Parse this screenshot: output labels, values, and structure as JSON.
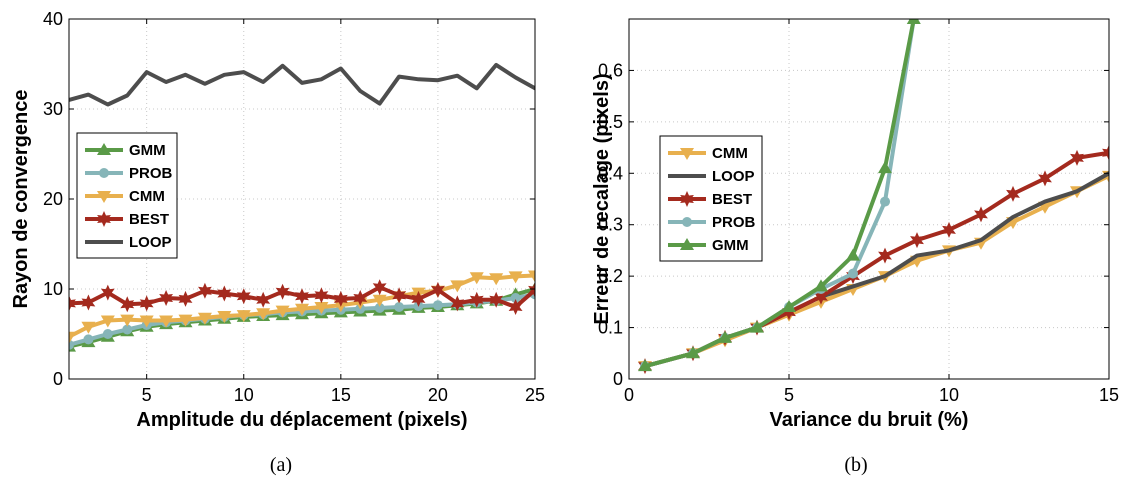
{
  "chart_data": [
    {
      "type": "line",
      "panel_label": "(a)",
      "xlabel": "Amplitude du déplacement (pixels)",
      "ylabel": "Rayon de convergence",
      "xlim": [
        1,
        25
      ],
      "ylim": [
        0,
        40
      ],
      "xticks": [
        5,
        10,
        15,
        20,
        25
      ],
      "yticks": [
        0,
        10,
        20,
        30,
        40
      ],
      "grid": true,
      "legend_position": "left",
      "x": [
        1,
        2,
        3,
        4,
        5,
        6,
        7,
        8,
        9,
        10,
        11,
        12,
        13,
        14,
        15,
        16,
        17,
        18,
        19,
        20,
        21,
        22,
        23,
        24,
        25
      ],
      "series": [
        {
          "name": "GMM",
          "color": "#5a9a47",
          "marker": "triangle-up",
          "values": [
            3.6,
            4.1,
            4.7,
            5.3,
            5.8,
            6.1,
            6.3,
            6.5,
            6.7,
            6.9,
            7.0,
            7.1,
            7.2,
            7.3,
            7.4,
            7.5,
            7.6,
            7.7,
            7.9,
            8.0,
            8.2,
            8.4,
            8.7,
            9.4,
            10.0
          ]
        },
        {
          "name": "PROB",
          "color": "#86b5b8",
          "marker": "circle",
          "values": [
            3.8,
            4.4,
            5.0,
            5.5,
            6.0,
            6.3,
            6.5,
            6.7,
            6.9,
            7.1,
            7.2,
            7.4,
            7.5,
            7.6,
            7.7,
            7.8,
            7.9,
            8.0,
            8.1,
            8.2,
            8.3,
            8.5,
            8.7,
            9.0,
            9.4
          ]
        },
        {
          "name": "CMM",
          "color": "#e8b04e",
          "marker": "triangle-down",
          "values": [
            4.7,
            5.8,
            6.5,
            6.6,
            6.5,
            6.5,
            6.6,
            6.8,
            7.0,
            7.1,
            7.3,
            7.6,
            7.8,
            8.0,
            8.2,
            8.5,
            8.8,
            9.2,
            9.6,
            9.8,
            10.4,
            11.3,
            11.2,
            11.4,
            11.5
          ]
        },
        {
          "name": "BEST",
          "color": "#a42a1e",
          "marker": "hexagram",
          "values": [
            8.4,
            8.5,
            9.6,
            8.3,
            8.4,
            9.0,
            8.9,
            9.8,
            9.5,
            9.2,
            8.8,
            9.7,
            9.2,
            9.3,
            8.9,
            9.0,
            10.2,
            9.3,
            8.9,
            9.9,
            8.4,
            8.8,
            8.8,
            8.0,
            9.9
          ]
        },
        {
          "name": "LOOP",
          "color": "#4d4d4d",
          "marker": "none",
          "values": [
            31.0,
            31.6,
            30.5,
            31.5,
            34.1,
            33.0,
            33.8,
            32.8,
            33.8,
            34.1,
            33.0,
            34.8,
            32.9,
            33.3,
            34.5,
            32.0,
            30.6,
            33.6,
            33.3,
            33.2,
            33.7,
            32.3,
            34.9,
            33.5,
            32.3
          ]
        }
      ]
    },
    {
      "type": "line",
      "panel_label": "(b)",
      "xlabel": "Variance du bruit (%)",
      "ylabel": "Erreur de recalage (pixels)",
      "xlim": [
        0,
        15
      ],
      "ylim": [
        0,
        0.7
      ],
      "xticks": [
        0,
        5,
        10,
        15
      ],
      "yticks": [
        0,
        0.1,
        0.2,
        0.3,
        0.4,
        0.5,
        0.6
      ],
      "grid": true,
      "legend_position": "center-left",
      "series": [
        {
          "name": "CMM",
          "color": "#e8b04e",
          "marker": "triangle-down",
          "x": [
            0.5,
            2,
            3,
            4,
            5,
            6,
            7,
            8,
            9,
            10,
            11,
            12,
            13,
            14,
            15
          ],
          "values": [
            0.025,
            0.05,
            0.075,
            0.1,
            0.125,
            0.15,
            0.175,
            0.2,
            0.23,
            0.25,
            0.265,
            0.305,
            0.335,
            0.365,
            0.395
          ]
        },
        {
          "name": "LOOP",
          "color": "#4d4d4d",
          "marker": "none",
          "x": [
            0.5,
            2,
            3,
            4,
            5,
            6,
            7,
            8,
            9,
            10,
            11,
            12,
            13,
            14,
            15
          ],
          "values": [
            0.025,
            0.05,
            0.08,
            0.1,
            0.13,
            0.16,
            0.18,
            0.2,
            0.24,
            0.25,
            0.27,
            0.315,
            0.345,
            0.365,
            0.4
          ]
        },
        {
          "name": "BEST",
          "color": "#a42a1e",
          "marker": "hexagram",
          "x": [
            0.5,
            2,
            3,
            4,
            5,
            6,
            7,
            8,
            9,
            10,
            11,
            12,
            13,
            14,
            15
          ],
          "values": [
            0.025,
            0.05,
            0.08,
            0.1,
            0.13,
            0.16,
            0.2,
            0.24,
            0.27,
            0.29,
            0.32,
            0.36,
            0.39,
            0.43,
            0.44
          ]
        },
        {
          "name": "PROB",
          "color": "#86b5b8",
          "marker": "circle",
          "x": [
            0.5,
            2,
            3,
            4,
            5,
            6,
            7,
            8,
            8.9
          ],
          "values": [
            0.025,
            0.05,
            0.08,
            0.1,
            0.14,
            0.175,
            0.205,
            0.345,
            0.7
          ]
        },
        {
          "name": "GMM",
          "color": "#5a9a47",
          "marker": "triangle-up",
          "x": [
            0.5,
            2,
            3,
            4,
            5,
            6,
            7,
            8,
            8.9
          ],
          "values": [
            0.025,
            0.05,
            0.08,
            0.1,
            0.14,
            0.18,
            0.24,
            0.41,
            0.7
          ]
        }
      ]
    }
  ],
  "captions": {
    "a": "(a)",
    "b": "(b)"
  }
}
